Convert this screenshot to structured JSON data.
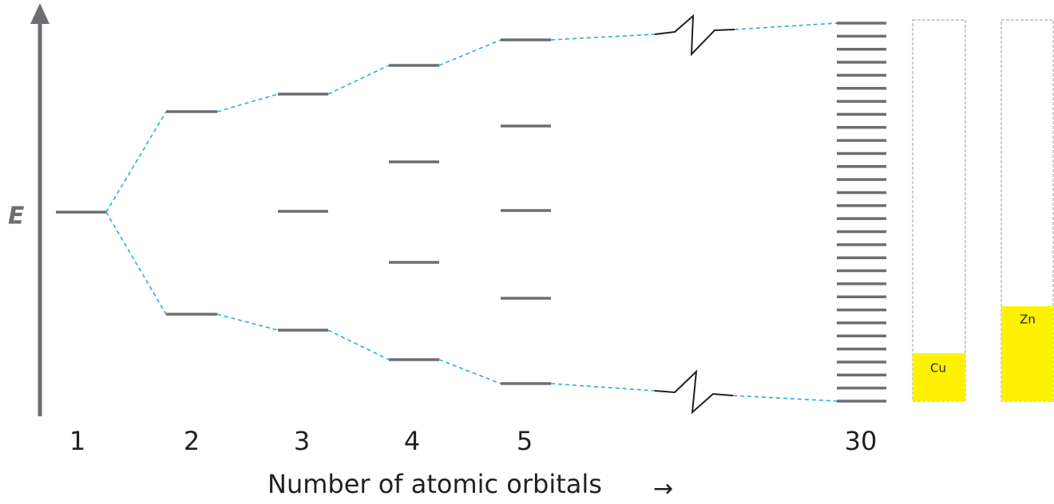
{
  "energy_axis": {
    "label": "E"
  },
  "columns": [
    "1",
    "2",
    "3",
    "4",
    "5",
    "30"
  ],
  "x_axis": {
    "title": "Number of atomic orbitals",
    "arrow": "→"
  },
  "bands": [
    {
      "label": "Cu"
    },
    {
      "label": "Zn"
    }
  ]
}
